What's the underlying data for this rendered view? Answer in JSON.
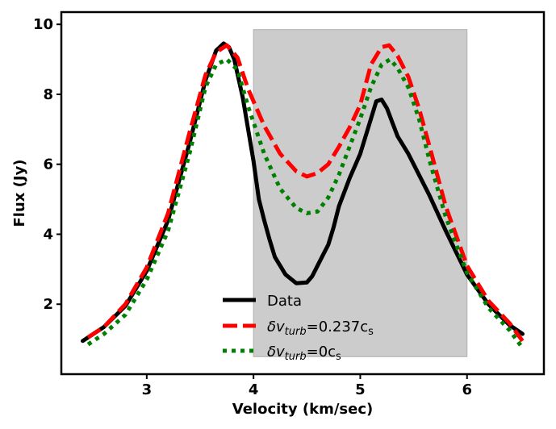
{
  "chart_data": {
    "type": "line",
    "title": "",
    "xlabel": "Velocity (km/sec)",
    "ylabel": "Flux (Jy)",
    "xlim": [
      2.2,
      6.72
    ],
    "ylim": [
      0.0,
      10.35
    ],
    "xticks": [
      3,
      4,
      5,
      6
    ],
    "yticks": [
      2,
      4,
      6,
      8,
      10
    ],
    "xtick_labels": [
      "3",
      "4",
      "5",
      "6"
    ],
    "ytick_labels": [
      "2",
      "4",
      "6",
      "8",
      "10"
    ],
    "shaded_region": {
      "x": [
        4.0,
        6.0
      ],
      "y": [
        0.5,
        9.85
      ],
      "color": "#cccccc"
    },
    "legend": {
      "placement": "lower-center",
      "entries": [
        {
          "series": "Data",
          "label": "Data",
          "sub": "",
          "suffix": ""
        },
        {
          "series": "turb0237",
          "label": "δv",
          "sub": "turb",
          "suffix": "=0.237c",
          "suffix_sub": "s"
        },
        {
          "series": "turb0",
          "label": "δv",
          "sub": "turb",
          "suffix": "=0c",
          "suffix_sub": "s"
        }
      ]
    },
    "series": [
      {
        "name": "Data",
        "color": "#000000",
        "style": "solid",
        "x": [
          2.4,
          2.6,
          2.8,
          3.0,
          3.2,
          3.4,
          3.55,
          3.65,
          3.72,
          3.77,
          3.82,
          3.9,
          4.0,
          4.05,
          4.1,
          4.15,
          4.2,
          4.3,
          4.4,
          4.5,
          4.55,
          4.6,
          4.65,
          4.7,
          4.75,
          4.8,
          4.9,
          5.0,
          5.1,
          5.15,
          5.2,
          5.25,
          5.3,
          5.35,
          5.45,
          5.55,
          5.65,
          5.8,
          6.0,
          6.2,
          6.4,
          6.52
        ],
        "y": [
          0.95,
          1.35,
          1.95,
          2.95,
          4.4,
          6.6,
          8.4,
          9.25,
          9.45,
          9.35,
          9.0,
          7.9,
          6.1,
          5.0,
          4.4,
          3.85,
          3.35,
          2.85,
          2.6,
          2.62,
          2.8,
          3.1,
          3.4,
          3.7,
          4.2,
          4.8,
          5.6,
          6.3,
          7.3,
          7.8,
          7.85,
          7.6,
          7.2,
          6.8,
          6.3,
          5.7,
          5.1,
          4.1,
          2.85,
          2.0,
          1.4,
          1.15
        ]
      },
      {
        "name": "turb0237",
        "color": "#ff0000",
        "style": "dashed",
        "x": [
          2.45,
          2.6,
          2.8,
          3.0,
          3.2,
          3.4,
          3.55,
          3.65,
          3.75,
          3.85,
          3.95,
          4.1,
          4.25,
          4.4,
          4.5,
          4.6,
          4.7,
          4.8,
          4.9,
          5.0,
          5.1,
          5.2,
          5.27,
          5.35,
          5.45,
          5.55,
          5.65,
          5.8,
          6.0,
          6.2,
          6.4,
          6.52
        ],
        "y": [
          1.05,
          1.35,
          2.0,
          3.05,
          4.6,
          6.9,
          8.55,
          9.2,
          9.4,
          9.05,
          8.15,
          7.1,
          6.3,
          5.8,
          5.65,
          5.75,
          6.0,
          6.5,
          7.05,
          7.7,
          8.85,
          9.35,
          9.4,
          9.1,
          8.5,
          7.6,
          6.5,
          4.8,
          3.1,
          2.1,
          1.45,
          0.95
        ]
      },
      {
        "name": "turb0",
        "color": "#008000",
        "style": "dotted",
        "x": [
          2.45,
          2.6,
          2.8,
          3.0,
          3.2,
          3.4,
          3.55,
          3.65,
          3.75,
          3.85,
          3.95,
          4.1,
          4.25,
          4.4,
          4.5,
          4.6,
          4.7,
          4.8,
          4.9,
          5.0,
          5.1,
          5.2,
          5.28,
          5.35,
          5.45,
          5.55,
          5.65,
          5.8,
          6.0,
          6.2,
          6.4,
          6.52
        ],
        "y": [
          0.85,
          1.15,
          1.7,
          2.7,
          4.1,
          6.3,
          8.2,
          8.85,
          9.0,
          8.7,
          7.65,
          6.3,
          5.3,
          4.75,
          4.6,
          4.65,
          5.05,
          5.7,
          6.5,
          7.3,
          8.2,
          8.85,
          9.0,
          8.75,
          8.2,
          7.3,
          6.1,
          4.5,
          2.9,
          1.9,
          1.25,
          0.75
        ]
      }
    ]
  }
}
